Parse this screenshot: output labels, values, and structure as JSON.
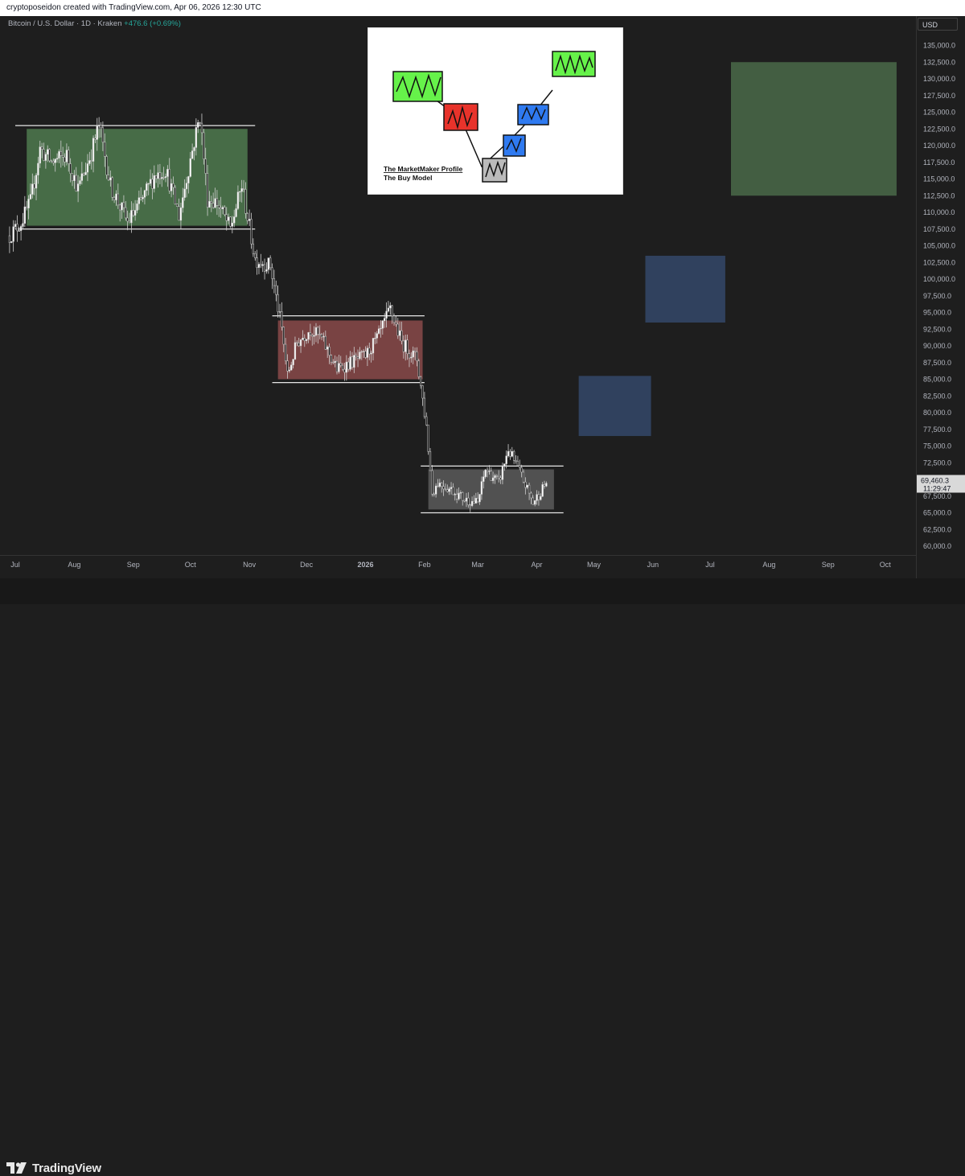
{
  "header": {
    "attribution": "cryptoposeidon created with TradingView.com, Apr 06, 2026 12:30 UTC"
  },
  "symbol": {
    "name": "Bitcoin / U.S. Dollar · 1D · Kraken",
    "change": "+476.6 (+0.69%)"
  },
  "price_axis": {
    "currency": "USD",
    "current_price": "69,460.3",
    "countdown": "11:29:47"
  },
  "inset": {
    "title": "The MarketMaker Profile",
    "subtitle": "The Buy Model"
  },
  "footer": {
    "brand": "TradingView"
  },
  "chart_data": {
    "type": "candlestick",
    "y_ticks": [
      135000,
      132500,
      130000,
      127500,
      125000,
      122500,
      120000,
      117500,
      115000,
      112500,
      110000,
      107500,
      105000,
      102500,
      100000,
      97500,
      95000,
      92500,
      90000,
      87500,
      85000,
      82500,
      80000,
      77500,
      75000,
      72500,
      67500,
      65000,
      62500,
      60000
    ],
    "y_tick_labels": [
      "135,000.0",
      "132,500.0",
      "130,000.0",
      "127,500.0",
      "125,000.0",
      "122,500.0",
      "120,000.0",
      "117,500.0",
      "115,000.0",
      "112,500.0",
      "110,000.0",
      "107,500.0",
      "105,000.0",
      "102,500.0",
      "100,000.0",
      "97,500.0",
      "95,000.0",
      "92,500.0",
      "90,000.0",
      "87,500.0",
      "85,000.0",
      "82,500.0",
      "80,000.0",
      "77,500.0",
      "75,000.0",
      "72,500.0",
      "67,500.0",
      "65,000.0",
      "62,500.0",
      "60,000.0"
    ],
    "x_ticks": [
      "Jul",
      "Aug",
      "Sep",
      "Oct",
      "Nov",
      "Dec",
      "2026",
      "Feb",
      "Mar",
      "Apr",
      "May",
      "Jun",
      "Jul",
      "Aug",
      "Sep",
      "Oct"
    ],
    "x_tick_dates": [
      "2025-07-01",
      "2025-08-01",
      "2025-09-01",
      "2025-10-01",
      "2025-11-01",
      "2025-12-01",
      "2026-01-01",
      "2026-02-01",
      "2026-03-01",
      "2026-04-01",
      "2026-05-01",
      "2026-06-01",
      "2026-07-01",
      "2026-08-01",
      "2026-09-01",
      "2026-10-01"
    ],
    "price_path": [
      [
        "2025-06-28",
        106500
      ],
      [
        "2025-07-04",
        108500
      ],
      [
        "2025-07-09",
        111500
      ],
      [
        "2025-07-14",
        119500
      ],
      [
        "2025-07-20",
        117500
      ],
      [
        "2025-07-28",
        118500
      ],
      [
        "2025-08-03",
        113500
      ],
      [
        "2025-08-10",
        119000
      ],
      [
        "2025-08-14",
        123000
      ],
      [
        "2025-08-20",
        114000
      ],
      [
        "2025-08-29",
        108500
      ],
      [
        "2025-09-05",
        111500
      ],
      [
        "2025-09-12",
        115500
      ],
      [
        "2025-09-18",
        116500
      ],
      [
        "2025-09-25",
        109500
      ],
      [
        "2025-10-01",
        118000
      ],
      [
        "2025-10-06",
        124500
      ],
      [
        "2025-10-10",
        112000
      ],
      [
        "2025-10-15",
        111500
      ],
      [
        "2025-10-22",
        107500
      ],
      [
        "2025-10-28",
        114000
      ],
      [
        "2025-11-04",
        103000
      ],
      [
        "2025-11-12",
        102000
      ],
      [
        "2025-11-18",
        92500
      ],
      [
        "2025-11-21",
        85500
      ],
      [
        "2025-11-26",
        90500
      ],
      [
        "2025-12-03",
        92500
      ],
      [
        "2025-12-09",
        91000
      ],
      [
        "2025-12-17",
        86500
      ],
      [
        "2025-12-24",
        87500
      ],
      [
        "2026-01-01",
        88500
      ],
      [
        "2026-01-08",
        91500
      ],
      [
        "2026-01-14",
        95500
      ],
      [
        "2026-01-20",
        90500
      ],
      [
        "2026-01-28",
        88000
      ],
      [
        "2026-02-02",
        78000
      ],
      [
        "2026-02-05",
        68000
      ],
      [
        "2026-02-08",
        69500
      ],
      [
        "2026-02-15",
        68500
      ],
      [
        "2026-02-22",
        67000
      ],
      [
        "2026-03-01",
        66500
      ],
      [
        "2026-03-05",
        71500
      ],
      [
        "2026-03-12",
        69500
      ],
      [
        "2026-03-17",
        74500
      ],
      [
        "2026-03-24",
        70500
      ],
      [
        "2026-03-30",
        66500
      ],
      [
        "2026-04-06",
        69460
      ]
    ],
    "zones": [
      {
        "name": "accumulation-range",
        "color": "#4f7a4f",
        "from": "2025-07-07",
        "to": "2025-10-31",
        "low": 108000,
        "high": 122500
      },
      {
        "name": "distribution-range",
        "color": "#8a4a4a",
        "from": "2025-11-16",
        "to": "2026-01-31",
        "low": 85000,
        "high": 93800
      },
      {
        "name": "consolidation-range",
        "color": "#5a5a5a",
        "from": "2026-02-03",
        "to": "2026-04-10",
        "low": 65500,
        "high": 71500
      },
      {
        "name": "projection-1",
        "color": "#34486a",
        "from": "2026-04-23",
        "to": "2026-05-31",
        "low": 76500,
        "high": 85500
      },
      {
        "name": "projection-2",
        "color": "#34486a",
        "from": "2026-05-28",
        "to": "2026-07-09",
        "low": 93500,
        "high": 103500
      },
      {
        "name": "projection-3",
        "color": "#4a6a49",
        "from": "2026-07-12",
        "to": "2026-10-07",
        "low": 112500,
        "high": 132500
      }
    ],
    "range_lines": [
      {
        "from": "2025-07-01",
        "to": "2025-11-04",
        "price": 123000
      },
      {
        "from": "2025-07-01",
        "to": "2025-11-04",
        "price": 107500
      },
      {
        "from": "2025-11-13",
        "to": "2026-02-01",
        "price": 94500
      },
      {
        "from": "2025-11-13",
        "to": "2026-02-01",
        "price": 84500
      },
      {
        "from": "2026-01-30",
        "to": "2026-04-15",
        "price": 72000
      },
      {
        "from": "2026-01-30",
        "to": "2026-04-15",
        "price": 65000
      }
    ]
  }
}
